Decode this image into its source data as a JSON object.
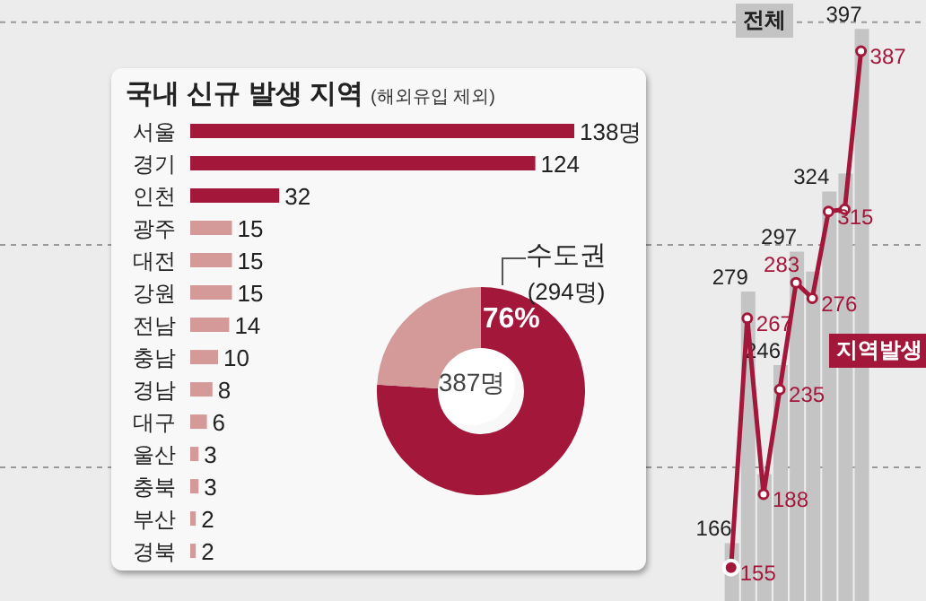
{
  "chart_data": [
    {
      "type": "bar",
      "categories": [
        null,
        null,
        null,
        null,
        null,
        null,
        null,
        null,
        null
      ],
      "series": [
        {
          "name": "전체",
          "color": "#c4c4c4",
          "values": [
            166,
            279,
            197,
            246,
            297,
            288,
            324,
            332,
            397
          ],
          "value_labels": [
            "166",
            "279",
            null,
            "246",
            "297",
            null,
            "324",
            null,
            "397"
          ]
        }
      ],
      "ylim": [
        140,
        410
      ],
      "yticks": [
        {
          "value": 200,
          "label": null
        },
        {
          "value": 300,
          "label": null
        },
        {
          "value": 400,
          "label": null
        }
      ],
      "grid": "y"
    },
    {
      "type": "line",
      "categories": [
        null,
        null,
        null,
        null,
        null,
        null,
        null,
        null,
        null
      ],
      "series": [
        {
          "name": "지역발생",
          "color": "#a3173b",
          "values": [
            155,
            267,
            188,
            235,
            283,
            276,
            315,
            316,
            387
          ],
          "value_labels": [
            "155",
            "267",
            "188",
            "235",
            "283",
            "276",
            "315",
            null,
            "387"
          ]
        }
      ],
      "ylim": [
        140,
        410
      ],
      "marker": "circle",
      "line_style": "solid"
    },
    {
      "type": "bar",
      "orientation": "horizontal",
      "title": "국내 신규 발생 지역",
      "subtitle": "(해외유입 제외)",
      "categories": [
        "서울",
        "경기",
        "인천",
        "광주",
        "대전",
        "강원",
        "전남",
        "충남",
        "경남",
        "대구",
        "울산",
        "충북",
        "부산",
        "경북"
      ],
      "values": [
        138,
        124,
        32,
        15,
        15,
        15,
        14,
        10,
        8,
        6,
        3,
        3,
        2,
        2
      ],
      "colors": [
        "#a3173b",
        "#a3173b",
        "#a3173b",
        "#d49a9a",
        "#d49a9a",
        "#d49a9a",
        "#d49a9a",
        "#d49a9a",
        "#d49a9a",
        "#d49a9a",
        "#d49a9a",
        "#d49a9a",
        "#d49a9a",
        "#d49a9a"
      ],
      "value_labels": [
        "138명",
        "124",
        "32",
        "15",
        "15",
        "15",
        "14",
        "10",
        "8",
        "6",
        "3",
        "3",
        "2",
        "2"
      ]
    },
    {
      "type": "donut",
      "categories": [
        "수도권",
        null
      ],
      "values": [
        76,
        24
      ],
      "colors": [
        "#a3173b",
        "#d49a9a"
      ],
      "value_labels": [
        "76%",
        null
      ],
      "annotations": [
        "(294명)",
        "387명"
      ]
    }
  ]
}
